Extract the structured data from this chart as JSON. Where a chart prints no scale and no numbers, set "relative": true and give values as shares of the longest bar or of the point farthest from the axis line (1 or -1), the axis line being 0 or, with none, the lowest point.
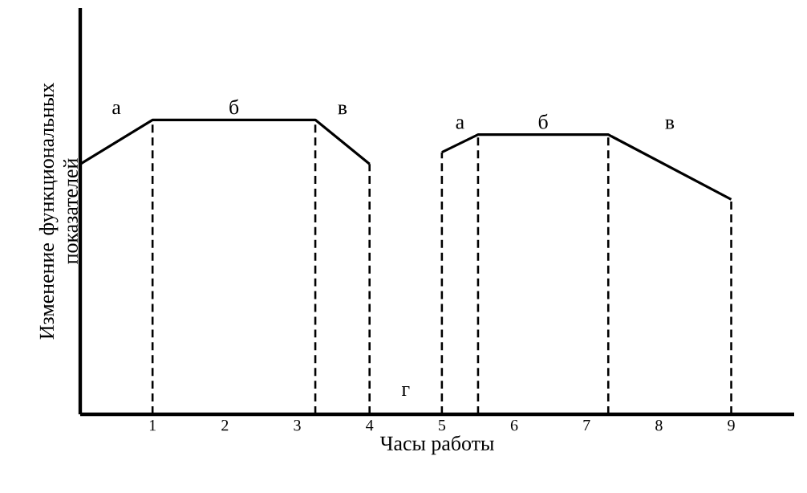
{
  "chart_data": {
    "type": "line",
    "relative": true,
    "xlabel": "Часы работы",
    "ylabel": "Изменение функциональных показателей",
    "xlim": [
      0,
      9.87
    ],
    "xticks": [
      1,
      2,
      3,
      4,
      5,
      6,
      7,
      8,
      9
    ],
    "series": [
      {
        "color": "#000000",
        "x": [
          0,
          1,
          3.25,
          4
        ],
        "values": [
          0.85,
          1,
          1,
          0.85
        ]
      },
      {
        "color": "#000000",
        "x": [
          5,
          5.5,
          7.3,
          9
        ],
        "values": [
          0.89,
          0.95,
          0.95,
          0.73
        ]
      }
    ],
    "ref_lines": [
      {
        "axis": "x",
        "value": 1,
        "line_style": "dashed"
      },
      {
        "axis": "x",
        "value": 3.25,
        "line_style": "dashed"
      },
      {
        "axis": "x",
        "value": 4,
        "line_style": "dashed"
      },
      {
        "axis": "x",
        "value": 5,
        "line_style": "dashed"
      },
      {
        "axis": "x",
        "value": 5.5,
        "line_style": "dashed"
      },
      {
        "axis": "x",
        "value": 7.3,
        "line_style": "dashed"
      },
      {
        "axis": "x",
        "value": 9,
        "line_style": "dashed"
      }
    ],
    "annotations": [
      "а",
      "б",
      "в",
      "г",
      "а",
      "б",
      "в"
    ]
  }
}
